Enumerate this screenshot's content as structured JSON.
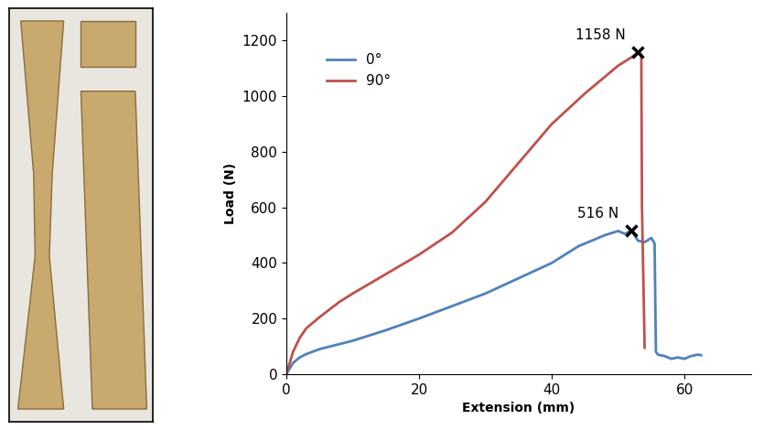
{
  "chart_data": {
    "type": "line",
    "xlabel": "Extension (mm)",
    "ylabel": "Load (N)",
    "xlim": [
      0,
      70
    ],
    "xticks": [
      0,
      20,
      40,
      60
    ],
    "ylim": [
      0,
      1300
    ],
    "yticks": [
      0,
      200,
      400,
      600,
      800,
      1000,
      1200
    ],
    "grid": false,
    "legend": "upper left",
    "series": [
      {
        "name": "0°",
        "color": "#4f81bd",
        "x": [
          0,
          1,
          2,
          3,
          5,
          8,
          10,
          15,
          20,
          25,
          30,
          35,
          40,
          44,
          45,
          48,
          50,
          51,
          52,
          53,
          54,
          55,
          55.5,
          55.7,
          56,
          57,
          58,
          59,
          60,
          61,
          62,
          62.5
        ],
        "values": [
          0,
          40,
          60,
          72,
          90,
          108,
          120,
          158,
          200,
          245,
          290,
          345,
          400,
          460,
          470,
          500,
          515,
          505,
          516,
          480,
          475,
          490,
          470,
          80,
          70,
          65,
          55,
          60,
          55,
          65,
          70,
          68
        ]
      },
      {
        "name": "90°",
        "color": "#c0504d",
        "x": [
          0,
          1,
          2,
          3,
          5,
          8,
          10,
          15,
          20,
          25,
          30,
          35,
          40,
          45,
          50,
          52,
          53,
          53.5,
          53.6,
          54
        ],
        "values": [
          0,
          80,
          130,
          165,
          205,
          260,
          290,
          360,
          430,
          510,
          620,
          760,
          900,
          1010,
          1110,
          1140,
          1158,
          1150,
          600,
          95
        ]
      }
    ],
    "annotations": [
      {
        "text": "1158 N",
        "x": 53,
        "y": 1158,
        "marker": "x"
      },
      {
        "text": "516 N",
        "x": 52,
        "y": 516,
        "marker": "x"
      }
    ]
  }
}
